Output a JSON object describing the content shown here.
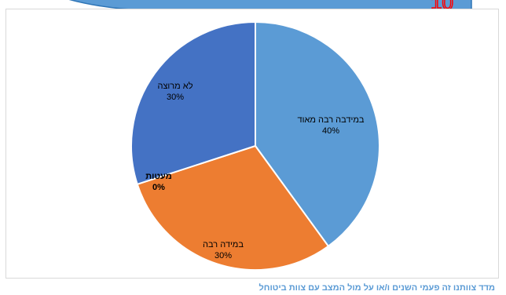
{
  "banner": {
    "fill": "#5b9bd5",
    "stroke": "#2e75b6",
    "accent_color": "#ff0000"
  },
  "chart_data": {
    "type": "pie",
    "categories": [
      "במידבה רבה מאוד",
      "במידה רבה",
      "מעט",
      "מעטות",
      "לא מרוצה"
    ],
    "values": [
      40,
      30,
      0,
      0,
      30
    ],
    "value_labels": [
      "40%",
      "30%",
      "",
      "0%",
      "30%"
    ],
    "colors": [
      "#5b9bd5",
      "#ed7d31",
      "#a5a5a5",
      "#ffc000",
      "#4472c4"
    ],
    "legend": "none"
  },
  "footer": {
    "caption": "מדד צוותנו זה פעמי השנים ו/או על מול המצב עם צוות ביטוחל"
  }
}
